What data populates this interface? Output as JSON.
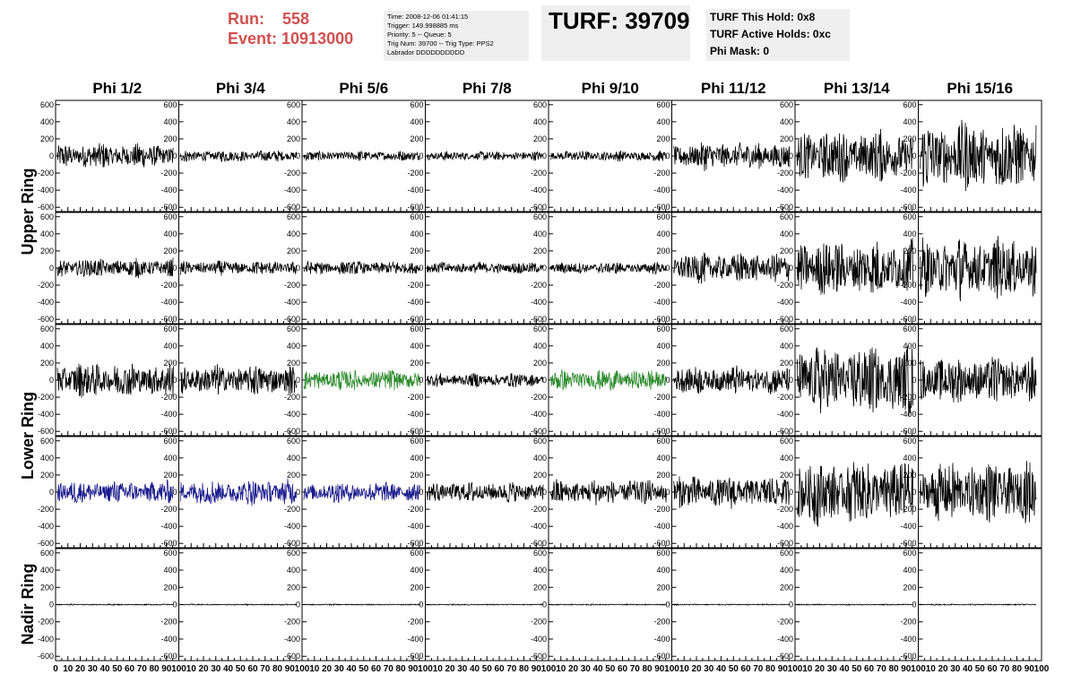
{
  "header": {
    "run_label": "Run:",
    "run_value": "558",
    "event_label": "Event:",
    "event_value": "10913000"
  },
  "trigger_info": {
    "line1": "Time: 2008-12-06 01:41:15",
    "line2": "Trigger: 149.998885 ms",
    "line3": "Priority: 5 -- Queue: 5",
    "line4": "Trig Num: 39700 -- Trig Type: PPS2",
    "line5": "Labrador DDDDDDDDDD"
  },
  "turf": {
    "label": "TURF: 39709"
  },
  "turf_holds": {
    "this_hold": "TURF This Hold: 0x8",
    "active_holds": "TURF Active Holds: 0xc",
    "phi_mask": "Phi Mask: 0"
  },
  "columns": [
    "Phi 1/2",
    "Phi 3/4",
    "Phi 5/6",
    "Phi 7/8",
    "Phi 9/10",
    "Phi 11/12",
    "Phi 13/14",
    "Phi 15/16"
  ],
  "rows": [
    "Upper Ring",
    "Lower Ring",
    "Nadir Ring"
  ],
  "y_ticks": [
    "600",
    "400",
    "200",
    "0",
    "-200",
    "-400",
    "-600"
  ],
  "x_ticks": [
    "0",
    "10",
    "20",
    "30",
    "40",
    "50",
    "60",
    "70",
    "80",
    "90",
    "100"
  ],
  "colors": {
    "black_trace": "#000000",
    "green_trace": "#2e8b2e",
    "blue_trace": "#1a1a8c",
    "run_text": "#d05050",
    "info_bg": "#efefef"
  },
  "traces": {
    "amplitude": [
      [
        110,
        50,
        45,
        40,
        45,
        120,
        220,
        300
      ],
      [
        80,
        60,
        60,
        50,
        50,
        130,
        240,
        260
      ],
      [
        150,
        130,
        90,
        60,
        90,
        120,
        300,
        200
      ],
      [
        100,
        110,
        90,
        90,
        110,
        140,
        280,
        260
      ],
      [
        5,
        5,
        5,
        5,
        5,
        5,
        5,
        5
      ]
    ],
    "color": [
      [
        "black",
        "black",
        "black",
        "black",
        "black",
        "black",
        "black",
        "black"
      ],
      [
        "black",
        "black",
        "black",
        "black",
        "black",
        "black",
        "black",
        "black"
      ],
      [
        "black",
        "black",
        "green",
        "black",
        "green",
        "black",
        "black",
        "black"
      ],
      [
        "blue",
        "blue",
        "blue",
        "black",
        "black",
        "black",
        "black",
        "black"
      ],
      [
        "black",
        "black",
        "black",
        "black",
        "black",
        "black",
        "black",
        "black"
      ]
    ]
  }
}
